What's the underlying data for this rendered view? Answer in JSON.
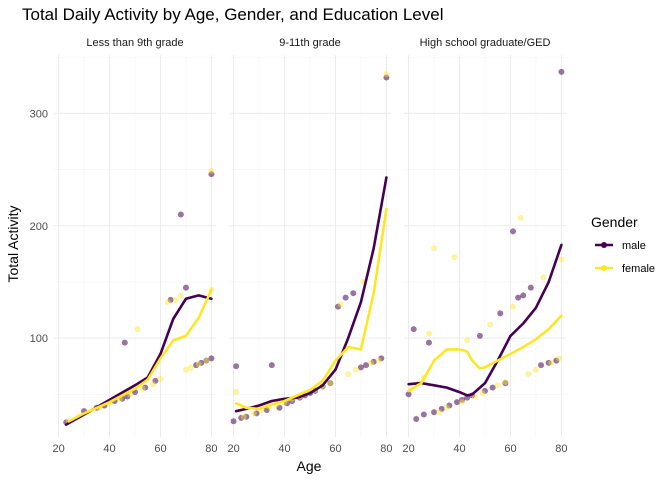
{
  "chart_data": {
    "type": "scatter",
    "title": "Total Daily Activity by Age, Gender, and Education Level",
    "xlabel": "Age",
    "ylabel": "Total Activity",
    "xlim": [
      18.2,
      81.8
    ],
    "ylim": [
      12,
      352
    ],
    "x_ticks": [
      20,
      40,
      60,
      80
    ],
    "y_ticks": [
      100,
      200,
      300
    ],
    "grid": true,
    "legend": {
      "title": "Gender",
      "position": "right",
      "entries": [
        {
          "key": "male",
          "label": "male",
          "color": "#440154"
        },
        {
          "key": "female",
          "label": "female",
          "color": "#fde725"
        }
      ]
    },
    "facets": [
      {
        "label": "Less than 9th grade",
        "points": {
          "male": [
            [
              23,
              25
            ],
            [
              30,
              35
            ],
            [
              35,
              38
            ],
            [
              38,
              40
            ],
            [
              42,
              44
            ],
            [
              45,
              46
            ],
            [
              46,
              96
            ],
            [
              47,
              48
            ],
            [
              50,
              52
            ],
            [
              54,
              56
            ],
            [
              58,
              62
            ],
            [
              64,
              134
            ],
            [
              68,
              210
            ],
            [
              70,
              145
            ],
            [
              74,
              76
            ],
            [
              76,
              78
            ],
            [
              78,
              80
            ],
            [
              80,
              82
            ],
            [
              80,
              246
            ]
          ],
          "female": [
            [
              24,
              26
            ],
            [
              28,
              30
            ],
            [
              32,
              34
            ],
            [
              36,
              38
            ],
            [
              40,
              42
            ],
            [
              44,
              46
            ],
            [
              48,
              50
            ],
            [
              51,
              108
            ],
            [
              53,
              55
            ],
            [
              57,
              59
            ],
            [
              60,
              64
            ],
            [
              63,
              132
            ],
            [
              66,
              134
            ],
            [
              68,
              138
            ],
            [
              70,
              72
            ],
            [
              72,
              74
            ],
            [
              75,
              77
            ],
            [
              78,
              80
            ],
            [
              80,
              143
            ],
            [
              80,
              249
            ]
          ]
        },
        "smooth": {
          "male": [
            [
              23,
              23
            ],
            [
              30,
              32
            ],
            [
              40,
              45
            ],
            [
              50,
              58
            ],
            [
              55,
              65
            ],
            [
              60,
              86
            ],
            [
              65,
              117
            ],
            [
              70,
              135
            ],
            [
              75,
              138
            ],
            [
              80,
              135
            ]
          ],
          "female": [
            [
              24,
              26
            ],
            [
              30,
              33
            ],
            [
              40,
              43
            ],
            [
              50,
              55
            ],
            [
              55,
              63
            ],
            [
              60,
              82
            ],
            [
              65,
              98
            ],
            [
              70,
              102
            ],
            [
              75,
              118
            ],
            [
              80,
              143
            ]
          ]
        }
      },
      {
        "label": "9-11th grade",
        "points": {
          "male": [
            [
              20,
              26
            ],
            [
              21,
              75
            ],
            [
              23,
              29
            ],
            [
              25,
              30
            ],
            [
              29,
              33
            ],
            [
              33,
              36
            ],
            [
              35,
              76
            ],
            [
              38,
              38
            ],
            [
              41,
              42
            ],
            [
              43,
              44
            ],
            [
              46,
              47
            ],
            [
              48,
              49
            ],
            [
              50,
              51
            ],
            [
              52,
              53
            ],
            [
              55,
              57
            ],
            [
              58,
              60
            ],
            [
              61,
              128
            ],
            [
              64,
              136
            ],
            [
              67,
              140
            ],
            [
              70,
              74
            ],
            [
              72,
              76
            ],
            [
              75,
              79
            ],
            [
              78,
              82
            ],
            [
              80,
              332
            ]
          ],
          "female": [
            [
              21,
              52
            ],
            [
              24,
              30
            ],
            [
              28,
              33
            ],
            [
              31,
              36
            ],
            [
              34,
              39
            ],
            [
              37,
              41
            ],
            [
              40,
              43
            ],
            [
              43,
              46
            ],
            [
              46,
              48
            ],
            [
              49,
              51
            ],
            [
              52,
              54
            ],
            [
              55,
              57
            ],
            [
              58,
              60
            ],
            [
              62,
              130
            ],
            [
              65,
              68
            ],
            [
              68,
              72
            ],
            [
              71,
              150
            ],
            [
              74,
              78
            ],
            [
              77,
              80
            ],
            [
              80,
              335
            ]
          ]
        },
        "smooth": {
          "male": [
            [
              21,
              35
            ],
            [
              25,
              37
            ],
            [
              30,
              40
            ],
            [
              35,
              44
            ],
            [
              40,
              46
            ],
            [
              45,
              47
            ],
            [
              50,
              51
            ],
            [
              55,
              58
            ],
            [
              60,
              72
            ],
            [
              65,
              100
            ],
            [
              70,
              132
            ],
            [
              75,
              180
            ],
            [
              80,
              243
            ]
          ],
          "female": [
            [
              21,
              42
            ],
            [
              25,
              38
            ],
            [
              30,
              37
            ],
            [
              35,
              41
            ],
            [
              40,
              44
            ],
            [
              45,
              49
            ],
            [
              50,
              54
            ],
            [
              55,
              62
            ],
            [
              60,
              80
            ],
            [
              65,
              92
            ],
            [
              70,
              90
            ],
            [
              75,
              140
            ],
            [
              80,
              215
            ]
          ]
        }
      },
      {
        "label": "High school graduate/GED",
        "points": {
          "male": [
            [
              20,
              50
            ],
            [
              22,
              108
            ],
            [
              23,
              28
            ],
            [
              26,
              32
            ],
            [
              28,
              96
            ],
            [
              30,
              34
            ],
            [
              33,
              37
            ],
            [
              36,
              40
            ],
            [
              39,
              43
            ],
            [
              41,
              45
            ],
            [
              43,
              47
            ],
            [
              45,
              49
            ],
            [
              48,
              102
            ],
            [
              50,
              53
            ],
            [
              53,
              56
            ],
            [
              56,
              122
            ],
            [
              58,
              60
            ],
            [
              61,
              195
            ],
            [
              63,
              136
            ],
            [
              65,
              138
            ],
            [
              68,
              145
            ],
            [
              72,
              76
            ],
            [
              75,
              78
            ],
            [
              78,
              80
            ],
            [
              80,
              337
            ]
          ],
          "female": [
            [
              21,
              54
            ],
            [
              24,
              60
            ],
            [
              26,
              65
            ],
            [
              28,
              104
            ],
            [
              30,
              180
            ],
            [
              32,
              34
            ],
            [
              35,
              38
            ],
            [
              38,
              172
            ],
            [
              41,
              43
            ],
            [
              43,
              98
            ],
            [
              46,
              48
            ],
            [
              49,
              51
            ],
            [
              52,
              112
            ],
            [
              55,
              58
            ],
            [
              58,
              61
            ],
            [
              61,
              128
            ],
            [
              64,
              207
            ],
            [
              67,
              68
            ],
            [
              70,
              72
            ],
            [
              73,
              154
            ],
            [
              76,
              78
            ],
            [
              79,
              82
            ],
            [
              80,
              170
            ]
          ]
        },
        "smooth": {
          "male": [
            [
              20,
              59
            ],
            [
              25,
              60
            ],
            [
              30,
              58
            ],
            [
              35,
              56
            ],
            [
              40,
              52
            ],
            [
              43,
              49
            ],
            [
              45,
              50
            ],
            [
              50,
              60
            ],
            [
              55,
              80
            ],
            [
              60,
              102
            ],
            [
              65,
              113
            ],
            [
              70,
              127
            ],
            [
              75,
              150
            ],
            [
              80,
              183
            ]
          ],
          "female": [
            [
              20,
              53
            ],
            [
              25,
              60
            ],
            [
              30,
              80
            ],
            [
              35,
              90
            ],
            [
              40,
              90
            ],
            [
              43,
              88
            ],
            [
              45,
              80
            ],
            [
              48,
              73
            ],
            [
              50,
              74
            ],
            [
              55,
              80
            ],
            [
              60,
              86
            ],
            [
              65,
              92
            ],
            [
              70,
              99
            ],
            [
              75,
              108
            ],
            [
              80,
              120
            ]
          ]
        }
      }
    ]
  }
}
